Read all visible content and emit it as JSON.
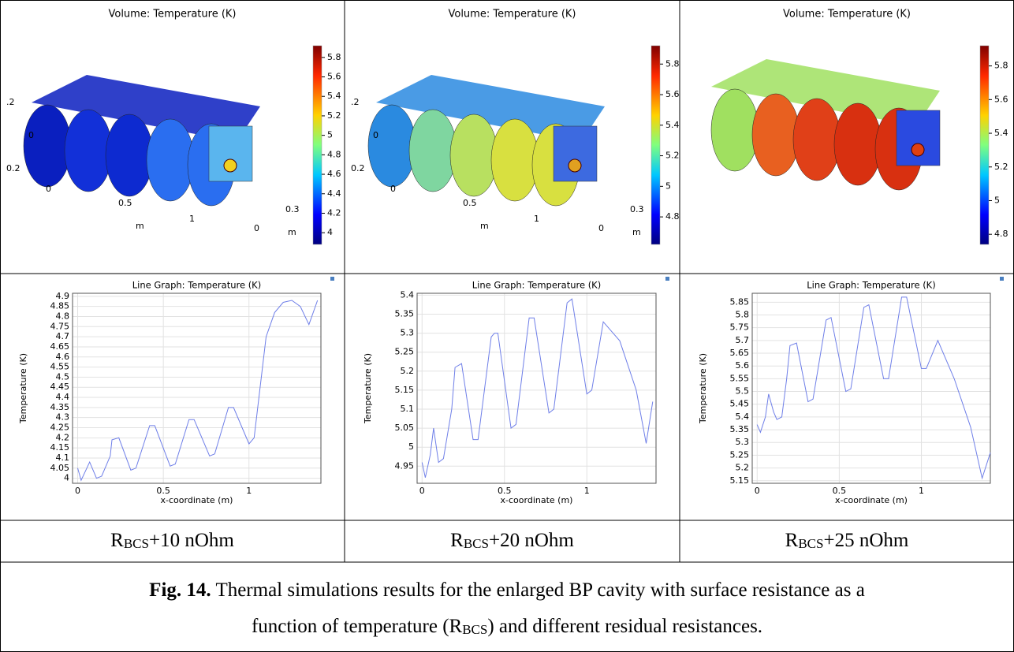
{
  "panels": [
    {
      "render": {
        "title": "Volume: Temperature (K)",
        "colorbar_lim": [
          3.88,
          5.92
        ],
        "colorbar_ticks": [
          4,
          4.2,
          4.4,
          4.6,
          4.8,
          5,
          5.2,
          5.4,
          5.6,
          5.8
        ],
        "axis_labels": [
          ".2",
          "0",
          "0.2",
          "0",
          "0.5",
          "1",
          "0.3",
          "0",
          "m",
          "m"
        ]
      },
      "graph": {
        "type": "line",
        "title": "Line Graph: Temperature (K)",
        "x_label": "x-coordinate (m)",
        "y_label": "Temperature (K)",
        "color": "#6f7fe8",
        "xlim": [
          -0.03,
          1.42
        ],
        "ylim": [
          3.975,
          4.915
        ],
        "xticks": [
          0,
          0.5,
          1
        ],
        "yticks": [
          4,
          4.05,
          4.1,
          4.15,
          4.2,
          4.25,
          4.3,
          4.35,
          4.4,
          4.45,
          4.5,
          4.55,
          4.6,
          4.65,
          4.7,
          4.75,
          4.8,
          4.85,
          4.9
        ],
        "x": [
          0,
          0.02,
          0.07,
          0.11,
          0.14,
          0.19,
          0.2,
          0.24,
          0.31,
          0.34,
          0.42,
          0.45,
          0.54,
          0.57,
          0.65,
          0.68,
          0.77,
          0.8,
          0.88,
          0.91,
          1.0,
          1.03,
          1.1,
          1.15,
          1.2,
          1.25,
          1.3,
          1.35,
          1.4
        ],
        "values": [
          4.05,
          3.99,
          4.08,
          4.0,
          4.01,
          4.11,
          4.19,
          4.2,
          4.04,
          4.05,
          4.26,
          4.26,
          4.06,
          4.07,
          4.29,
          4.29,
          4.11,
          4.12,
          4.35,
          4.35,
          4.17,
          4.2,
          4.7,
          4.82,
          4.87,
          4.88,
          4.85,
          4.76,
          4.88
        ]
      },
      "label": {
        "main": "R",
        "sub": "BCS",
        "rest": "+10 nOhm"
      }
    },
    {
      "render": {
        "title": "Volume: Temperature (K)",
        "colorbar_lim": [
          4.62,
          5.92
        ],
        "colorbar_ticks": [
          4.8,
          5,
          5.2,
          5.4,
          5.6,
          5.8
        ],
        "axis_labels": [
          ".2",
          "0",
          "0.2",
          "0",
          "0.5",
          "1",
          "0.3",
          "0",
          "m",
          "m"
        ]
      },
      "graph": {
        "type": "line",
        "title": "Line Graph: Temperature (K)",
        "x_label": "x-coordinate (m)",
        "y_label": "Temperature (K)",
        "color": "#6f7fe8",
        "xlim": [
          -0.03,
          1.42
        ],
        "ylim": [
          4.905,
          5.405
        ],
        "xticks": [
          0,
          0.5,
          1
        ],
        "yticks": [
          4.95,
          5,
          5.05,
          5.1,
          5.15,
          5.2,
          5.25,
          5.3,
          5.35,
          5.4
        ],
        "x": [
          0,
          0.02,
          0.05,
          0.07,
          0.1,
          0.13,
          0.18,
          0.2,
          0.24,
          0.31,
          0.34,
          0.42,
          0.44,
          0.46,
          0.54,
          0.57,
          0.65,
          0.68,
          0.77,
          0.8,
          0.88,
          0.91,
          1.0,
          1.03,
          1.1,
          1.2,
          1.3,
          1.36,
          1.4
        ],
        "values": [
          4.96,
          4.92,
          4.98,
          5.05,
          4.96,
          4.97,
          5.1,
          5.21,
          5.22,
          5.02,
          5.02,
          5.29,
          5.3,
          5.3,
          5.05,
          5.06,
          5.34,
          5.34,
          5.09,
          5.1,
          5.38,
          5.39,
          5.14,
          5.15,
          5.33,
          5.28,
          5.15,
          5.01,
          5.12
        ]
      },
      "label": {
        "main": "R",
        "sub": "BCS",
        "rest": "+20 nOhm"
      }
    },
    {
      "render": {
        "title": "Volume: Temperature (K)",
        "colorbar_lim": [
          4.74,
          5.92
        ],
        "colorbar_ticks": [
          4.8,
          5,
          5.2,
          5.4,
          5.6,
          5.8
        ]
      },
      "graph": {
        "type": "line",
        "title": "Line Graph: Temperature (K)",
        "x_label": "x-coordinate (m)",
        "y_label": "Temperature (K)",
        "color": "#6f7fe8",
        "xlim": [
          -0.03,
          1.42
        ],
        "ylim": [
          5.14,
          5.885
        ],
        "xticks": [
          0,
          0.5,
          1
        ],
        "yticks": [
          5.15,
          5.2,
          5.25,
          5.3,
          5.35,
          5.4,
          5.45,
          5.5,
          5.55,
          5.6,
          5.65,
          5.7,
          5.75,
          5.8,
          5.85
        ],
        "x": [
          0,
          0.02,
          0.05,
          0.07,
          0.1,
          0.12,
          0.15,
          0.18,
          0.2,
          0.24,
          0.31,
          0.34,
          0.42,
          0.45,
          0.54,
          0.57,
          0.65,
          0.68,
          0.77,
          0.8,
          0.88,
          0.91,
          1.0,
          1.03,
          1.1,
          1.2,
          1.3,
          1.37,
          1.42
        ],
        "values": [
          5.37,
          5.34,
          5.4,
          5.49,
          5.42,
          5.39,
          5.4,
          5.55,
          5.68,
          5.69,
          5.46,
          5.47,
          5.78,
          5.79,
          5.5,
          5.51,
          5.83,
          5.84,
          5.55,
          5.55,
          5.87,
          5.87,
          5.59,
          5.59,
          5.7,
          5.55,
          5.36,
          5.16,
          5.26
        ]
      },
      "label": {
        "main": "R",
        "sub": "BCS",
        "rest": "+25 nOhm"
      }
    }
  ],
  "caption": {
    "bold": "Fig. 14.",
    "line1": " Thermal simulations results for the enlarged BP cavity with surface resistance as a",
    "line2_a": "function of temperature (R",
    "line2_sub": "BCS",
    "line2_b": ") and different residual resistances."
  }
}
